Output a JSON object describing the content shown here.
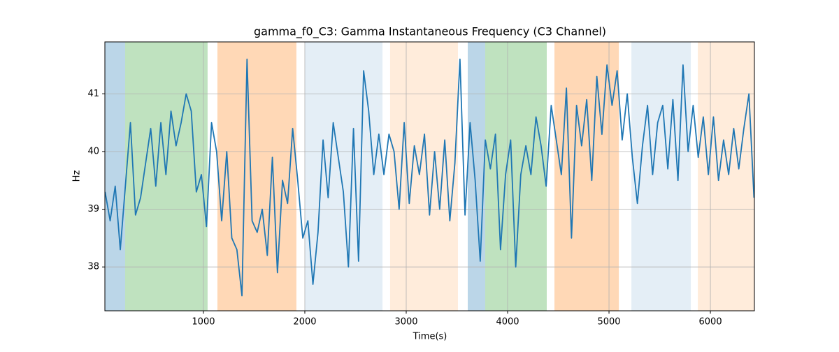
{
  "chart_data": {
    "type": "line",
    "title": "gamma_f0_C3: Gamma Instantaneous Frequency (C3 Channel)",
    "x_label": "Time(s)",
    "y_label": "Hz",
    "xlim": [
      28,
      6434
    ],
    "ylim": [
      37.24,
      41.9
    ],
    "xticks": [
      1000,
      2000,
      3000,
      4000,
      5000,
      6000
    ],
    "yticks": [
      38,
      39,
      40,
      41
    ],
    "grid": true,
    "spans": [
      {
        "start": 28,
        "end": 228,
        "color": "#1f77b4",
        "alpha": 0.3
      },
      {
        "start": 228,
        "end": 1041,
        "color": "#2ca02c",
        "alpha": 0.3
      },
      {
        "start": 1138,
        "end": 1917,
        "color": "#ff7f0e",
        "alpha": 0.3
      },
      {
        "start": 2000,
        "end": 2766,
        "color": "#1f77b4",
        "alpha": 0.12
      },
      {
        "start": 2841,
        "end": 3510,
        "color": "#ff7f0e",
        "alpha": 0.15
      },
      {
        "start": 3607,
        "end": 3779,
        "color": "#1f77b4",
        "alpha": 0.3
      },
      {
        "start": 3779,
        "end": 4386,
        "color": "#2ca02c",
        "alpha": 0.3
      },
      {
        "start": 4462,
        "end": 5097,
        "color": "#ff7f0e",
        "alpha": 0.3
      },
      {
        "start": 5221,
        "end": 5807,
        "color": "#1f77b4",
        "alpha": 0.12
      },
      {
        "start": 5876,
        "end": 6434,
        "color": "#ff7f0e",
        "alpha": 0.15
      }
    ],
    "x": [
      30,
      80,
      130,
      180,
      230,
      280,
      330,
      380,
      430,
      480,
      530,
      580,
      630,
      680,
      730,
      780,
      830,
      880,
      930,
      980,
      1030,
      1080,
      1130,
      1180,
      1230,
      1280,
      1330,
      1380,
      1430,
      1480,
      1530,
      1580,
      1630,
      1680,
      1730,
      1780,
      1830,
      1880,
      1930,
      1980,
      2030,
      2080,
      2130,
      2180,
      2230,
      2280,
      2330,
      2380,
      2430,
      2480,
      2530,
      2580,
      2630,
      2680,
      2730,
      2780,
      2830,
      2880,
      2930,
      2980,
      3030,
      3080,
      3130,
      3180,
      3230,
      3280,
      3330,
      3380,
      3430,
      3480,
      3530,
      3580,
      3630,
      3680,
      3730,
      3780,
      3830,
      3880,
      3930,
      3980,
      4030,
      4080,
      4130,
      4180,
      4230,
      4280,
      4330,
      4380,
      4430,
      4480,
      4530,
      4580,
      4630,
      4680,
      4730,
      4780,
      4830,
      4880,
      4930,
      4980,
      5030,
      5080,
      5130,
      5180,
      5230,
      5280,
      5330,
      5380,
      5430,
      5480,
      5530,
      5580,
      5630,
      5680,
      5730,
      5780,
      5830,
      5880,
      5930,
      5980,
      6030,
      6080,
      6130,
      6180,
      6230,
      6280,
      6330,
      6380,
      6430
    ],
    "series": [
      {
        "color": "#1f77b4",
        "values": [
          39.3,
          38.8,
          39.4,
          38.3,
          39.4,
          40.5,
          38.9,
          39.2,
          39.8,
          40.4,
          39.4,
          40.5,
          39.6,
          40.7,
          40.1,
          40.5,
          41.0,
          40.7,
          39.3,
          39.6,
          38.7,
          40.5,
          40.0,
          38.8,
          40.0,
          38.5,
          38.3,
          37.5,
          41.6,
          38.8,
          38.6,
          39.0,
          38.2,
          39.9,
          37.9,
          39.5,
          39.1,
          40.4,
          39.5,
          38.5,
          38.8,
          37.7,
          38.6,
          40.2,
          39.2,
          40.5,
          39.9,
          39.3,
          38.0,
          40.4,
          38.1,
          41.4,
          40.7,
          39.6,
          40.3,
          39.6,
          40.3,
          40.0,
          39.0,
          40.5,
          39.1,
          40.1,
          39.6,
          40.3,
          38.9,
          40.0,
          39.0,
          40.2,
          38.8,
          39.8,
          41.6,
          38.9,
          40.5,
          39.5,
          38.1,
          40.2,
          39.7,
          40.3,
          38.3,
          39.6,
          40.2,
          38.0,
          39.6,
          40.1,
          39.6,
          40.6,
          40.1,
          39.4,
          40.8,
          40.2,
          39.6,
          41.1,
          38.5,
          40.8,
          40.1,
          40.9,
          39.5,
          41.3,
          40.3,
          41.5,
          40.8,
          41.4,
          40.2,
          41.0,
          39.9,
          39.1,
          40.1,
          40.8,
          39.6,
          40.5,
          40.8,
          39.7,
          40.9,
          39.5,
          41.5,
          40.0,
          40.8,
          39.9,
          40.6,
          39.6,
          40.6,
          39.5,
          40.2,
          39.6,
          40.4,
          39.7,
          40.4,
          41.0,
          39.2
        ]
      }
    ]
  }
}
